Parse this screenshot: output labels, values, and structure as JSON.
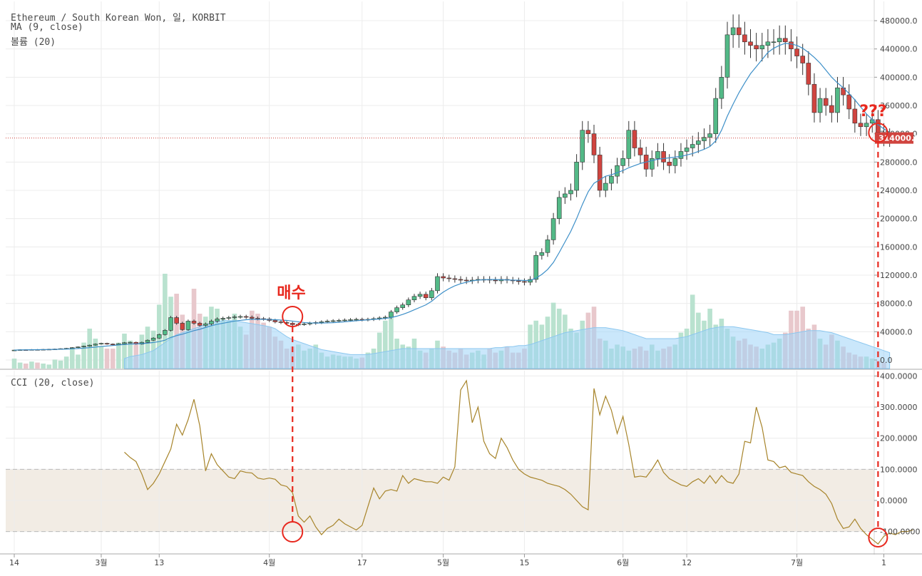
{
  "chart_data": {
    "type": "candlestick",
    "title": "Ethereum / South Korean Won, 일, KORBIT",
    "legend": [
      "MA (9, close)",
      "볼륨 (20)"
    ],
    "price_axis": {
      "ticks": [
        "480000.0",
        "440000.0",
        "400000.0",
        "360000.0",
        "320000.0",
        "280000.0",
        "240000.0",
        "200000.0",
        "160000.0",
        "120000.0",
        "80000.0",
        "40000.0",
        "0.0"
      ],
      "range": [
        0,
        480000
      ],
      "last_price": 314000,
      "last_price_label": "314000.0"
    },
    "x_axis": {
      "ticks": [
        {
          "label": "14",
          "day": 0
        },
        {
          "label": "3월",
          "day": 15
        },
        {
          "label": "13",
          "day": 25
        },
        {
          "label": "4월",
          "day": 44
        },
        {
          "label": "17",
          "day": 60
        },
        {
          "label": "5월",
          "day": 74
        },
        {
          "label": "15",
          "day": 88
        },
        {
          "label": "6월",
          "day": 105
        },
        {
          "label": "12",
          "day": 116
        },
        {
          "label": "7월",
          "day": 135
        },
        {
          "label": "1",
          "day": 150
        }
      ]
    },
    "price_series": {
      "close": [
        14000,
        14500,
        14200,
        14800,
        14600,
        15000,
        15200,
        15500,
        16000,
        16500,
        17500,
        18500,
        19500,
        21000,
        22500,
        23500,
        22500,
        21500,
        23000,
        24500,
        25000,
        22500,
        25000,
        28000,
        31000,
        36000,
        42000,
        60000,
        52000,
        43000,
        55000,
        52000,
        49000,
        51000,
        55000,
        58000,
        59000,
        60000,
        61000,
        61500,
        60500,
        59000,
        58500,
        58000,
        56000,
        54000,
        53000,
        52000,
        50000,
        50500,
        51000,
        52000,
        53000,
        54000,
        55000,
        55500,
        56000,
        56500,
        57000,
        57500,
        57000,
        57500,
        58500,
        59500,
        60500,
        68000,
        74000,
        78000,
        85000,
        90000,
        93000,
        88000,
        98000,
        118000,
        116000,
        115000,
        114000,
        113000,
        112000,
        113000,
        114000,
        114000,
        113000,
        112000,
        114000,
        113000,
        112000,
        111000,
        110000,
        114000,
        148000,
        152000,
        170000,
        200000,
        230000,
        235000,
        240000,
        280000,
        325000,
        320000,
        290000,
        240000,
        250000,
        260000,
        275000,
        285000,
        325000,
        300000,
        290000,
        270000,
        285000,
        295000,
        280000,
        275000,
        285000,
        295000,
        300000,
        305000,
        310000,
        315000,
        320000,
        370000,
        400000,
        460000,
        470000,
        460000,
        450000,
        445000,
        440000,
        445000,
        450000,
        450000,
        455000,
        450000,
        440000,
        430000,
        420000,
        390000,
        350000,
        370000,
        360000,
        350000,
        385000,
        375000,
        355000,
        335000,
        330000,
        335000,
        340000,
        322000,
        315000,
        314000
      ],
      "ma9": [
        14000,
        14300,
        14400,
        14500,
        14600,
        14700,
        14800,
        15000,
        15200,
        15400,
        15800,
        16200,
        16800,
        17500,
        18300,
        19200,
        19800,
        20500,
        21300,
        21900,
        22500,
        22800,
        23200,
        23800,
        24800,
        26000,
        28000,
        32000,
        34500,
        36500,
        39000,
        41500,
        43500,
        46000,
        48500,
        50500,
        52000,
        53500,
        55000,
        56000,
        57000,
        57500,
        57500,
        57500,
        57300,
        57000,
        56500,
        56000,
        55000,
        54000,
        53000,
        52500,
        52300,
        52300,
        52500,
        52800,
        53300,
        54000,
        54800,
        55500,
        56200,
        56800,
        57500,
        58000,
        58800,
        60000,
        62000,
        64500,
        67500,
        71000,
        74500,
        78000,
        83000,
        90000,
        96000,
        101000,
        105000,
        108000,
        110000,
        112000,
        113000,
        113500,
        113800,
        113800,
        113500,
        113300,
        113000,
        112800,
        112500,
        112500,
        116000,
        121000,
        128000,
        138000,
        152000,
        167000,
        182000,
        200000,
        220000,
        238000,
        250000,
        255000,
        260000,
        262000,
        265000,
        268000,
        272000,
        275000,
        278000,
        280000,
        282000,
        284000,
        285000,
        286000,
        287000,
        288000,
        290000,
        292000,
        295000,
        298000,
        302000,
        310000,
        325000,
        345000,
        362000,
        378000,
        392000,
        405000,
        415000,
        425000,
        435000,
        441000,
        445000,
        448000,
        447000,
        445000,
        441000,
        435000,
        428000,
        420000,
        410000,
        400000,
        392000,
        385000,
        377000,
        368000,
        358000,
        348000,
        340000,
        333000,
        327000,
        322000
      ],
      "candles_shown_from": 0
    },
    "volume_series": {
      "relative_heights": [
        0.1,
        0.06,
        0.05,
        0.07,
        0.06,
        0.05,
        0.04,
        0.09,
        0.08,
        0.12,
        0.2,
        0.14,
        0.26,
        0.4,
        0.3,
        0.22,
        0.2,
        0.2,
        0.26,
        0.35,
        0.28,
        0.26,
        0.34,
        0.42,
        0.38,
        0.64,
        0.95,
        0.72,
        0.75,
        0.54,
        0.46,
        0.8,
        0.55,
        0.52,
        0.62,
        0.6,
        0.5,
        0.48,
        0.55,
        0.42,
        0.34,
        0.58,
        0.55,
        0.46,
        0.42,
        0.32,
        0.28,
        0.2,
        0.22,
        0.24,
        0.18,
        0.2,
        0.24,
        0.16,
        0.12,
        0.14,
        0.13,
        0.12,
        0.12,
        0.1,
        0.11,
        0.16,
        0.2,
        0.36,
        0.48,
        0.54,
        0.3,
        0.24,
        0.22,
        0.3,
        0.18,
        0.16,
        0.2,
        0.28,
        0.22,
        0.18,
        0.16,
        0.2,
        0.14,
        0.16,
        0.18,
        0.14,
        0.2,
        0.16,
        0.18,
        0.22,
        0.16,
        0.16,
        0.2,
        0.44,
        0.48,
        0.44,
        0.52,
        0.66,
        0.6,
        0.54,
        0.4,
        0.36,
        0.48,
        0.56,
        0.62,
        0.3,
        0.28,
        0.2,
        0.24,
        0.22,
        0.18,
        0.2,
        0.22,
        0.18,
        0.24,
        0.18,
        0.2,
        0.22,
        0.24,
        0.36,
        0.4,
        0.74,
        0.56,
        0.48,
        0.6,
        0.44,
        0.5,
        0.4,
        0.32,
        0.28,
        0.3,
        0.24,
        0.22,
        0.2,
        0.24,
        0.26,
        0.3,
        0.36,
        0.58,
        0.58,
        0.62,
        0.4,
        0.44,
        0.3,
        0.24,
        0.34,
        0.28,
        0.22,
        0.16,
        0.14,
        0.12,
        0.12,
        0.1,
        0.08,
        0.06
      ],
      "ma20_relative": [
        0.0,
        0.0,
        0.0,
        0.0,
        0.0,
        0.0,
        0.0,
        0.0,
        0.0,
        0.0,
        0.0,
        0.0,
        0.0,
        0.0,
        0.0,
        0.0,
        0.0,
        0.0,
        0.0,
        0.1,
        0.12,
        0.13,
        0.14,
        0.16,
        0.18,
        0.22,
        0.26,
        0.3,
        0.34,
        0.36,
        0.38,
        0.4,
        0.42,
        0.44,
        0.46,
        0.47,
        0.48,
        0.48,
        0.48,
        0.47,
        0.46,
        0.45,
        0.44,
        0.43,
        0.42,
        0.4,
        0.36,
        0.32,
        0.29,
        0.27,
        0.25,
        0.23,
        0.21,
        0.19,
        0.18,
        0.17,
        0.16,
        0.15,
        0.14,
        0.14,
        0.14,
        0.14,
        0.15,
        0.16,
        0.17,
        0.18,
        0.19,
        0.2,
        0.2,
        0.2,
        0.2,
        0.2,
        0.2,
        0.2,
        0.2,
        0.2,
        0.2,
        0.2,
        0.2,
        0.2,
        0.2,
        0.2,
        0.2,
        0.21,
        0.21,
        0.22,
        0.22,
        0.23,
        0.23,
        0.24,
        0.26,
        0.28,
        0.3,
        0.32,
        0.34,
        0.36,
        0.37,
        0.38,
        0.39,
        0.4,
        0.41,
        0.41,
        0.41,
        0.4,
        0.39,
        0.38,
        0.36,
        0.34,
        0.32,
        0.3,
        0.3,
        0.3,
        0.3,
        0.3,
        0.3,
        0.31,
        0.32,
        0.34,
        0.36,
        0.38,
        0.4,
        0.41,
        0.42,
        0.42,
        0.42,
        0.41,
        0.4,
        0.39,
        0.38,
        0.37,
        0.36,
        0.34,
        0.34,
        0.34,
        0.35,
        0.36,
        0.37,
        0.38,
        0.38,
        0.38,
        0.37,
        0.36,
        0.34,
        0.32,
        0.3,
        0.28,
        0.26,
        0.24,
        0.22,
        0.2,
        0.18,
        0.16
      ]
    },
    "cci": {
      "label": "CCI (20, close)",
      "ticks": [
        "400.0000",
        "300.0000",
        "200.0000",
        "100.0000",
        "0.0000",
        "-100.0000"
      ],
      "range": [
        -160,
        410
      ],
      "band": [
        -100,
        100
      ],
      "start_day": 19,
      "values": [
        155,
        138,
        125,
        85,
        35,
        55,
        85,
        125,
        165,
        245,
        210,
        260,
        325,
        240,
        95,
        150,
        115,
        95,
        75,
        70,
        95,
        90,
        88,
        72,
        68,
        72,
        68,
        50,
        45,
        25,
        -50,
        -70,
        -50,
        -85,
        -110,
        -90,
        -80,
        -60,
        -75,
        -85,
        -95,
        -80,
        -20,
        40,
        5,
        30,
        35,
        30,
        80,
        55,
        70,
        65,
        60,
        60,
        55,
        75,
        65,
        108,
        355,
        385,
        250,
        300,
        190,
        150,
        135,
        200,
        170,
        130,
        100,
        85,
        75,
        70,
        65,
        55,
        50,
        45,
        35,
        20,
        0,
        -20,
        -30,
        360,
        275,
        335,
        290,
        215,
        270,
        180,
        75,
        78,
        75,
        100,
        130,
        90,
        70,
        60,
        50,
        45,
        60,
        70,
        55,
        80,
        55,
        80,
        60,
        55,
        85,
        190,
        185,
        300,
        235,
        130,
        125,
        105,
        110,
        90,
        85,
        80,
        60,
        45,
        35,
        20,
        -10,
        -60,
        -90,
        -85,
        -60,
        -90,
        -110,
        -125,
        -140,
        -115,
        -105,
        -110,
        -100,
        -100,
        -95
      ]
    },
    "annotations": {
      "buy_label": "매수",
      "question_label": "???",
      "buy_day": 48,
      "current_day": 149
    },
    "colors": {
      "up": "#53b987",
      "down": "#d0443f",
      "ma_line": "#3d8fc8",
      "volume_ma_fill": "#9fd3f7",
      "volume_up": "#b9e2cf",
      "volume_down": "#e8c8cc",
      "cci_line": "#a7842a",
      "annotation": "#e8281e",
      "price_line": "#d0443f"
    }
  }
}
